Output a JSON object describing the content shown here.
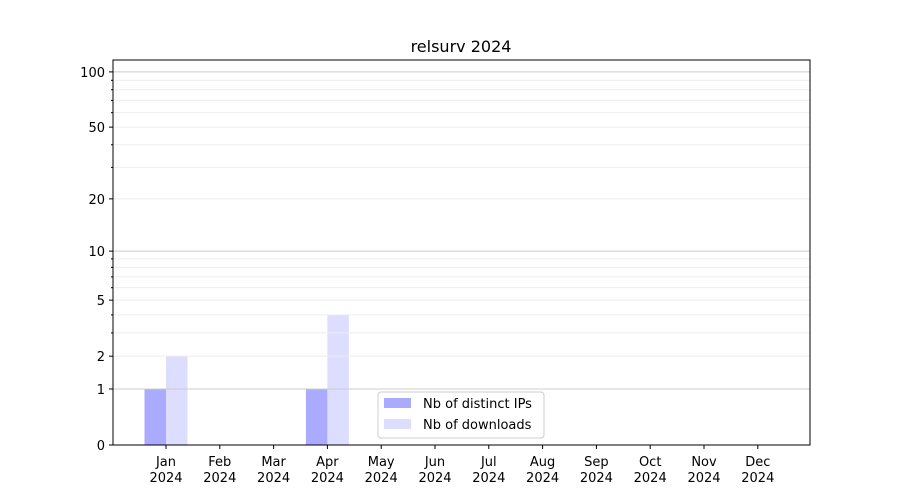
{
  "chart_data": {
    "type": "bar",
    "title": "relsurv 2024",
    "xlabel": "",
    "ylabel": "",
    "categories": [
      "Jan\n2024",
      "Feb\n2024",
      "Mar\n2024",
      "Apr\n2024",
      "May\n2024",
      "Jun\n2024",
      "Jul\n2024",
      "Aug\n2024",
      "Sep\n2024",
      "Oct\n2024",
      "Nov\n2024",
      "Dec\n2024"
    ],
    "series": [
      {
        "name": "Nb of distinct IPs",
        "color": "#aaaaff",
        "values": [
          1,
          0,
          0,
          1,
          0,
          0,
          0,
          0,
          0,
          0,
          0,
          0
        ]
      },
      {
        "name": "Nb of downloads",
        "color": "#ddddff",
        "values": [
          2,
          0,
          0,
          4,
          0,
          0,
          0,
          0,
          0,
          0,
          0,
          0
        ]
      }
    ],
    "yscale": "log(1+y)",
    "ylim": [
      0,
      116
    ],
    "yticks": [
      0,
      1,
      2,
      5,
      10,
      20,
      50,
      100
    ],
    "ytick_labels": [
      "0",
      "1",
      "2",
      "5",
      "10",
      "20",
      "50",
      "100"
    ],
    "grid": true,
    "grid_major_color": "#cccccc",
    "grid_minor_color": "#eeeeee",
    "legend_position": "lower-center"
  }
}
